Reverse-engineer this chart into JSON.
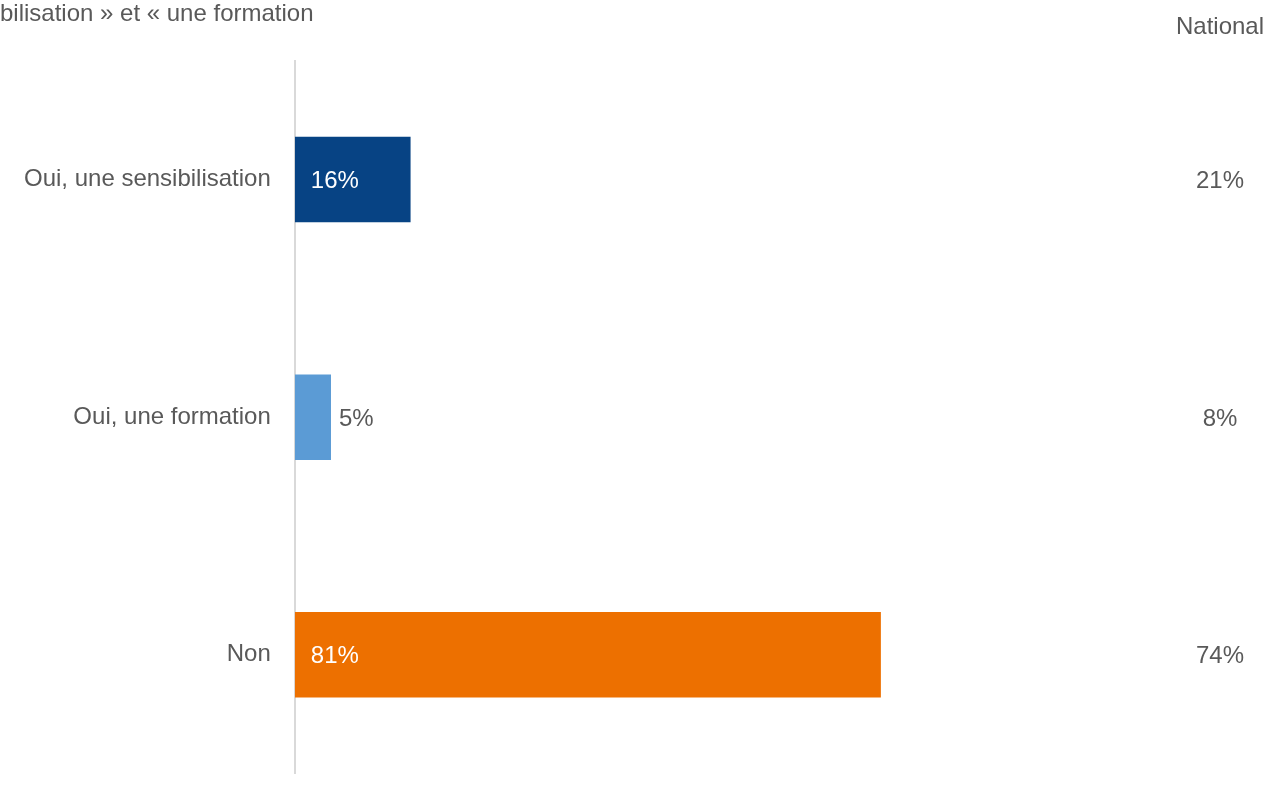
{
  "chart_data": {
    "type": "bar",
    "orientation": "horizontal",
    "title": "bilisation » et « une formation",
    "categories": [
      "Oui, une sensibilisation",
      "Oui, une formation",
      "Non"
    ],
    "values": [
      16,
      5,
      81
    ],
    "colors": [
      "#074384",
      "#5b9bd5",
      "#ed7000"
    ],
    "value_labels": [
      "16%",
      "5%",
      "81%"
    ],
    "annotations": [
      "National",
      "21%",
      "8%",
      "74%"
    ],
    "grid": false,
    "legend": false
  }
}
